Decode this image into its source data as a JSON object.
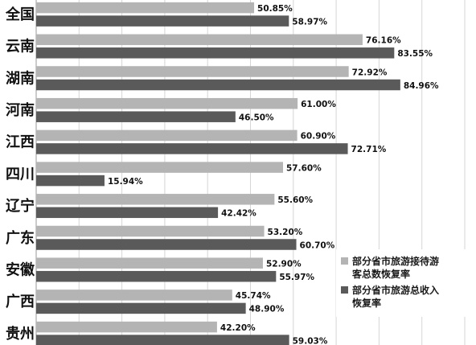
{
  "chart_data": {
    "type": "bar",
    "orientation": "horizontal",
    "categories": [
      "全国",
      "云南",
      "湖南",
      "河南",
      "江西",
      "四川",
      "辽宁",
      "广东",
      "安徽",
      "广西",
      "贵州"
    ],
    "series": [
      {
        "name": "部分省市旅游接待游客总数恢复率",
        "color": "#b4b4b4",
        "values": [
          50.85,
          76.16,
          72.92,
          61.0,
          60.9,
          57.6,
          55.6,
          53.2,
          52.9,
          45.74,
          42.2
        ],
        "labels": [
          "50.85%",
          "76.16%",
          "72.92%",
          "61.00%",
          "60.90%",
          "57.60%",
          "55.60%",
          "53.20%",
          "52.90%",
          "45.74%",
          "42.20%"
        ]
      },
      {
        "name": "部分省市旅游总收入恢复率",
        "color": "#5a5a5a",
        "values": [
          58.97,
          83.55,
          84.96,
          46.5,
          72.71,
          15.94,
          42.42,
          60.7,
          55.97,
          48.9,
          59.03
        ],
        "labels": [
          "58.97%",
          "83.55%",
          "84.96%",
          "46.50%",
          "72.71%",
          "15.94%",
          "42.42%",
          "60.70%",
          "55.97%",
          "48.90%",
          "59.03%"
        ]
      }
    ],
    "xlim": [
      0,
      100
    ],
    "grid": true,
    "legend": {
      "position": "bottom-right",
      "lines": [
        [
          "部分省市旅游接待游",
          "客总数恢复率"
        ],
        [
          "部分省市旅游总收入",
          "恢复率"
        ]
      ]
    }
  }
}
